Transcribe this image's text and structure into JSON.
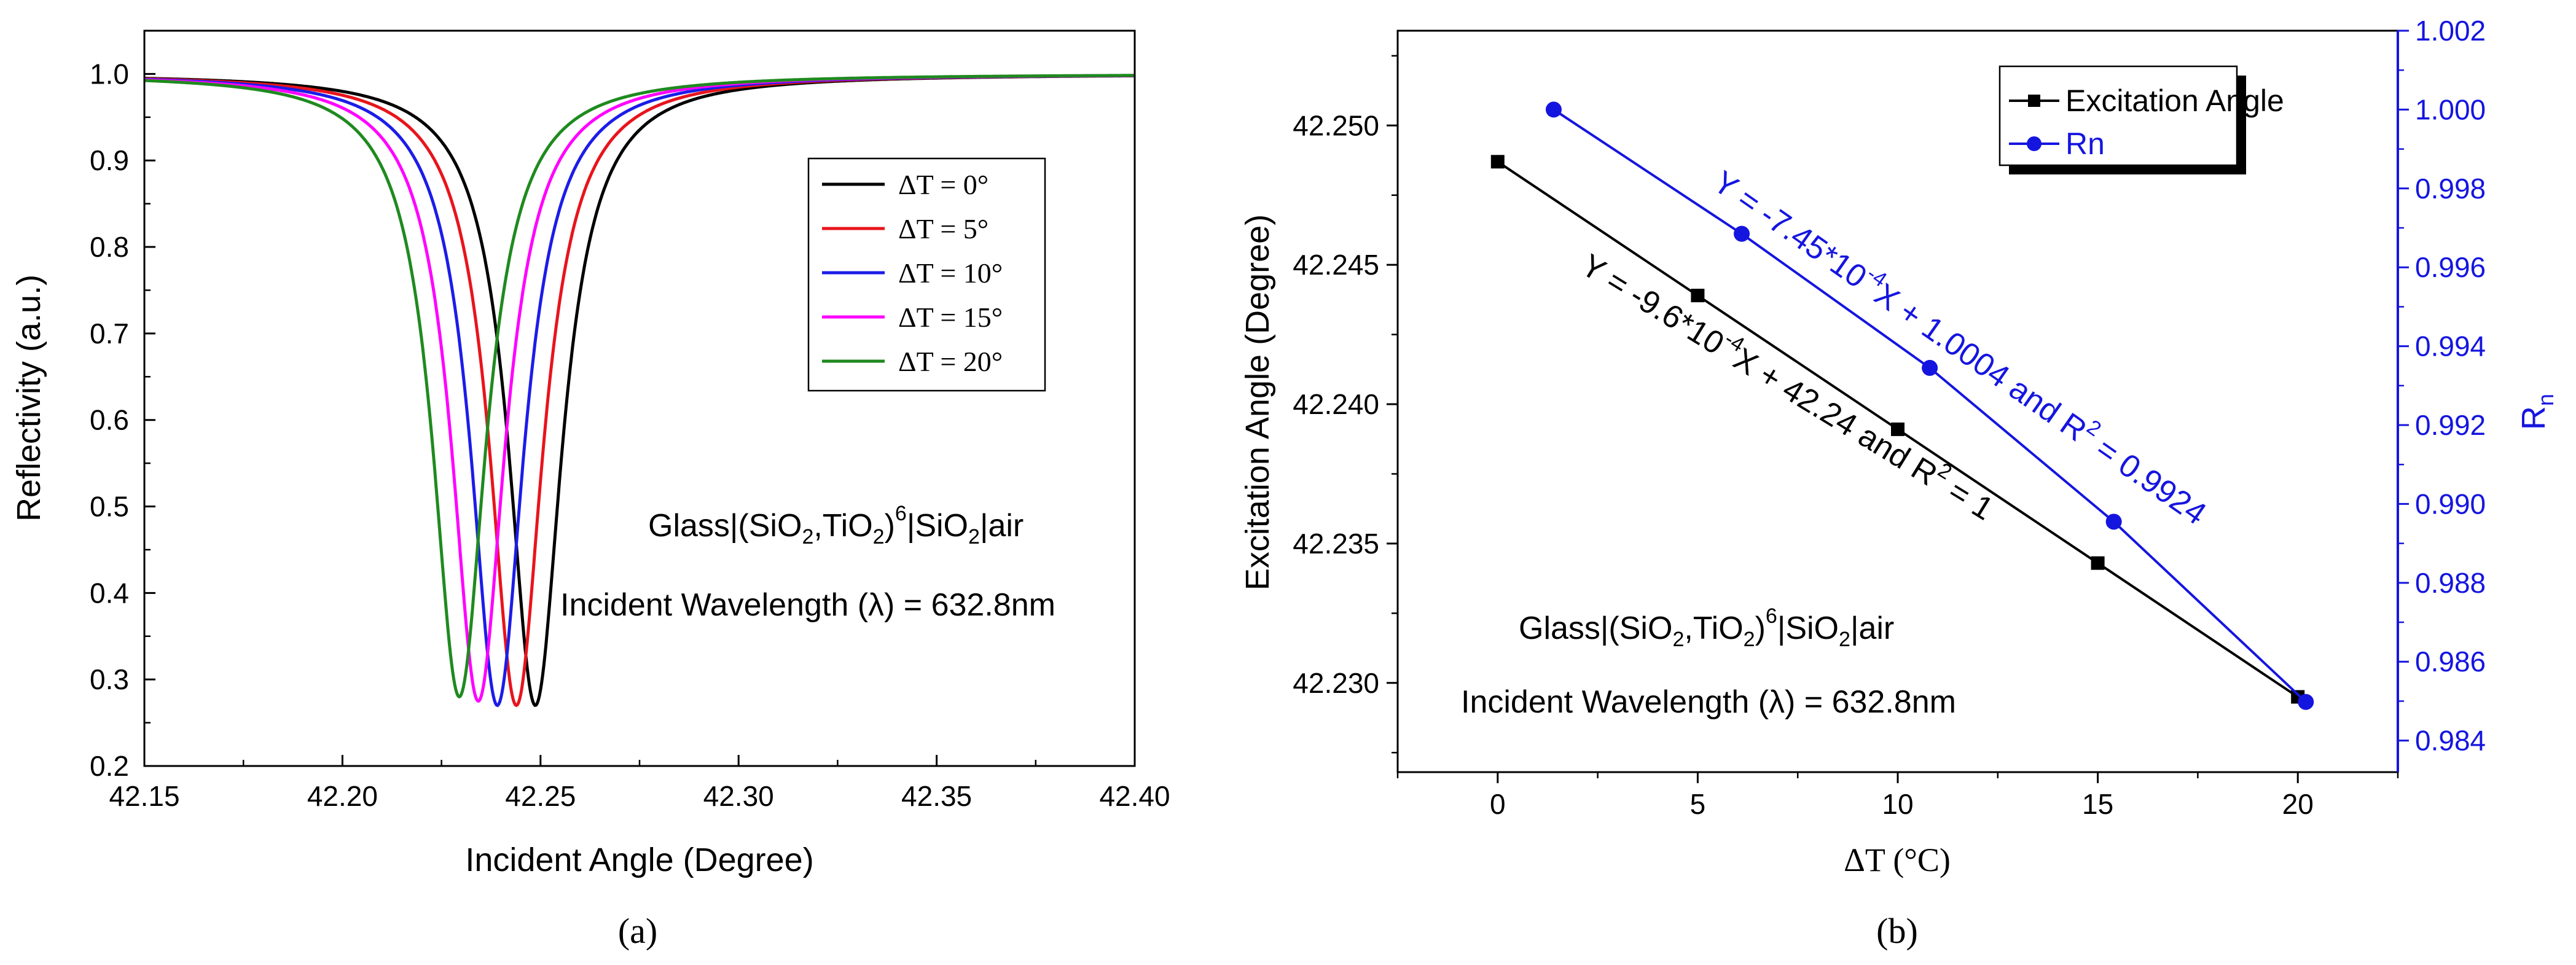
{
  "colors": {
    "black": "#000000",
    "red": "#e8141c",
    "blue": "#1c1ce8",
    "magenta": "#ff00ff",
    "green": "#1f8a1f",
    "rn_blue": "#1515e0"
  },
  "chart_data": [
    {
      "id": "a",
      "type": "line",
      "caption": "(a)",
      "xlabel": "Incident Angle (Degree)",
      "ylabel": "Reflectivity (a.u.)",
      "xlim": [
        42.15,
        42.4
      ],
      "ylim": [
        0.2,
        1.05
      ],
      "xticks": [
        "42.15",
        "42.20",
        "42.25",
        "42.30",
        "42.35",
        "42.40"
      ],
      "yticks": [
        "0.2",
        "0.3",
        "0.4",
        "0.5",
        "0.6",
        "0.7",
        "0.8",
        "0.9",
        "1.0"
      ],
      "legend_position": "upper-right-center",
      "annotations": {
        "structure": {
          "pre": "Glass|(SiO",
          "sub1": "2",
          "mid": ",TiO",
          "sub2": "2",
          "close": ")",
          "sup": "6",
          "post": "|SiO",
          "sub3": "2",
          "end": "|air"
        },
        "wavelength": "Incident Wavelength (λ) = 632.8nm"
      },
      "series": [
        {
          "name": "ΔT = 0°",
          "color": "#000000",
          "resonance_angle": 42.2487,
          "min_reflectivity": 0.27,
          "width": 0.0082
        },
        {
          "name": "ΔT = 5°",
          "color": "#e8141c",
          "resonance_angle": 42.2439,
          "min_reflectivity": 0.27,
          "width": 0.0082
        },
        {
          "name": "ΔT = 10°",
          "color": "#1c1ce8",
          "resonance_angle": 42.2391,
          "min_reflectivity": 0.27,
          "width": 0.0082
        },
        {
          "name": "ΔT = 15°",
          "color": "#ff00ff",
          "resonance_angle": 42.2343,
          "min_reflectivity": 0.275,
          "width": 0.0082
        },
        {
          "name": "ΔT = 20°",
          "color": "#1f8a1f",
          "resonance_angle": 42.2295,
          "min_reflectivity": 0.28,
          "width": 0.0082
        }
      ]
    },
    {
      "id": "b",
      "type": "line",
      "caption": "(b)",
      "xlabel": "ΔT (°C)",
      "ylabel_left": "Excitation Angle (Degree)",
      "ylabel_right_main": "R",
      "ylabel_right_sub": "n",
      "xlim": [
        -2.5,
        22.5
      ],
      "ylim_left": [
        42.2268,
        42.2534
      ],
      "ylim_right": [
        0.9832,
        1.002
      ],
      "xticks": [
        "0",
        "5",
        "10",
        "15",
        "20"
      ],
      "yticks_left": [
        "42.230",
        "42.235",
        "42.240",
        "42.245",
        "42.250"
      ],
      "yticks_right": [
        "0.984",
        "0.986",
        "0.988",
        "0.990",
        "0.992",
        "0.994",
        "0.996",
        "0.998",
        "1.000",
        "1.002"
      ],
      "series": [
        {
          "name": "Excitation Angle",
          "axis": "left",
          "color": "#000000",
          "marker": "square",
          "x": [
            0,
            5,
            10,
            15,
            20
          ],
          "y": [
            42.2487,
            42.2439,
            42.2391,
            42.2343,
            42.2295
          ]
        },
        {
          "name": "Rn",
          "axis": "right",
          "color": "#1515e0",
          "marker": "circle",
          "x": [
            1.4,
            6.1,
            10.8,
            15.4,
            20.2
          ],
          "y": [
            1.0,
            0.99685,
            0.99345,
            0.98955,
            0.98498
          ]
        }
      ],
      "fit_black": {
        "pre": "Y = -9.6*10",
        "sup": "-4",
        "mid": "X + 42.24  and R",
        "sup2": "2",
        "post": " = 1"
      },
      "fit_blue": {
        "pre": "Y = -7.45*10",
        "sup": "-4",
        "mid": "X + 1.0004  and R",
        "sup2": "2",
        "post": " = 0.9924"
      },
      "annotations": {
        "structure": {
          "pre": "Glass|(SiO",
          "sub1": "2",
          "mid": ",TiO",
          "sub2": "2",
          "close": ")",
          "sup": "6",
          "post": "|SiO",
          "sub3": "2",
          "end": "|air"
        },
        "wavelength": "Incident Wavelength (λ) = 632.8nm"
      }
    }
  ]
}
